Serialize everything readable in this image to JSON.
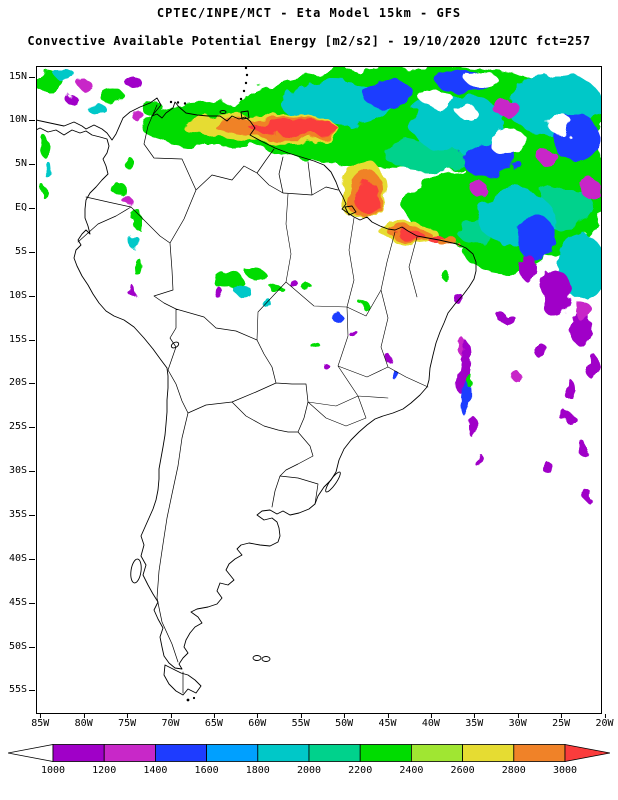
{
  "header": {
    "title_line1": "CPTEC/INPE/MCT -  Eta Model 15km - GFS",
    "title_line2": "Convective Available Potential Energy [m2/s2] - 19/10/2020 12UTC fct=257"
  },
  "axes": {
    "lat_labels": [
      "15N",
      "10N",
      "5N",
      "EQ",
      "5S",
      "10S",
      "15S",
      "20S",
      "25S",
      "30S",
      "35S",
      "40S",
      "45S",
      "50S",
      "55S"
    ],
    "lon_labels": [
      "85W",
      "80W",
      "75W",
      "70W",
      "65W",
      "60W",
      "55W",
      "50W",
      "45W",
      "40W",
      "35W",
      "30W",
      "25W",
      "20W"
    ]
  },
  "colorbar": {
    "labels": [
      "1000",
      "1200",
      "1400",
      "1600",
      "1800",
      "2000",
      "2200",
      "2400",
      "2600",
      "2800",
      "3000"
    ],
    "colors": [
      "#FFFFFF",
      "#A000C8",
      "#C828C8",
      "#1E3CFF",
      "#00A0FF",
      "#00C8C8",
      "#00D28C",
      "#00DC00",
      "#A0E632",
      "#E6DC32",
      "#F08228",
      "#FA3C3C"
    ]
  },
  "map": {
    "field_name": "CAPE",
    "line_color": "#000000",
    "blobs": [
      [
        7,
        180,
        60,
        75,
        22,
        0
      ],
      [
        7,
        380,
        52,
        190,
        52,
        0
      ],
      [
        7,
        498,
        118,
        72,
        75,
        0
      ],
      [
        7,
        432,
        142,
        62,
        38,
        0
      ],
      [
        7,
        470,
        182,
        45,
        24,
        0
      ],
      [
        6,
        390,
        88,
        42,
        18,
        0
      ],
      [
        6,
        528,
        142,
        30,
        20,
        0
      ],
      [
        6,
        445,
        165,
        25,
        12,
        0
      ],
      [
        5,
        300,
        38,
        55,
        22,
        0
      ],
      [
        5,
        422,
        58,
        48,
        28,
        0
      ],
      [
        5,
        518,
        38,
        48,
        32,
        0
      ],
      [
        5,
        480,
        152,
        38,
        28,
        0
      ],
      [
        5,
        545,
        200,
        24,
        32,
        0
      ],
      [
        3,
        352,
        28,
        26,
        14,
        0
      ],
      [
        3,
        452,
        92,
        28,
        18,
        0
      ],
      [
        3,
        540,
        72,
        24,
        24,
        0
      ],
      [
        3,
        500,
        172,
        18,
        24,
        0
      ],
      [
        3,
        428,
        16,
        28,
        11,
        0
      ],
      [
        0,
        402,
        34,
        16,
        9,
        0
      ],
      [
        0,
        472,
        76,
        20,
        12,
        0
      ],
      [
        0,
        524,
        58,
        13,
        9,
        0
      ],
      [
        0,
        446,
        14,
        16,
        8,
        0
      ],
      [
        5,
        430,
        46,
        22,
        15,
        0
      ],
      [
        0,
        430,
        45,
        10,
        7,
        0
      ],
      [
        2,
        470,
        42,
        12,
        10,
        0
      ],
      [
        2,
        512,
        92,
        10,
        8,
        0
      ],
      [
        2,
        554,
        122,
        9,
        11,
        0
      ],
      [
        2,
        442,
        122,
        8,
        8,
        0
      ],
      [
        1,
        520,
        228,
        16,
        24,
        0
      ],
      [
        1,
        545,
        262,
        12,
        17,
        0
      ],
      [
        1,
        492,
        202,
        9,
        13,
        0
      ],
      [
        1,
        556,
        300,
        8,
        12,
        0
      ],
      [
        1,
        532,
        322,
        6,
        10,
        0
      ],
      [
        2,
        548,
        246,
        8,
        10,
        0
      ],
      [
        9,
        225,
        62,
        80,
        14,
        2
      ],
      [
        10,
        240,
        62,
        62,
        10,
        2
      ],
      [
        11,
        258,
        62,
        46,
        6,
        2
      ],
      [
        9,
        326,
        124,
        22,
        30,
        15
      ],
      [
        10,
        329,
        128,
        16,
        24,
        15
      ],
      [
        11,
        331,
        131,
        10,
        16,
        15
      ],
      [
        9,
        372,
        166,
        30,
        11,
        5
      ],
      [
        10,
        373,
        167,
        22,
        8,
        5
      ],
      [
        11,
        374,
        168,
        14,
        5,
        5
      ],
      [
        11,
        400,
        173,
        8,
        4,
        0
      ],
      [
        10,
        412,
        176,
        10,
        5,
        0
      ],
      [
        7,
        12,
        16,
        16,
        9,
        0
      ],
      [
        5,
        30,
        10,
        10,
        6,
        0
      ],
      [
        2,
        50,
        20,
        7,
        5,
        0
      ],
      [
        1,
        95,
        14,
        8,
        6,
        0
      ],
      [
        7,
        76,
        30,
        12,
        8,
        0
      ],
      [
        5,
        62,
        44,
        9,
        6,
        0
      ],
      [
        7,
        116,
        42,
        11,
        7,
        0
      ],
      [
        2,
        100,
        48,
        6,
        5,
        0
      ],
      [
        1,
        36,
        34,
        6,
        5,
        0
      ],
      [
        7,
        10,
        82,
        6,
        10,
        0
      ],
      [
        5,
        14,
        106,
        4,
        8,
        0
      ],
      [
        7,
        8,
        126,
        3,
        6,
        0
      ],
      [
        7,
        82,
        122,
        6,
        8,
        0
      ],
      [
        2,
        90,
        133,
        4,
        5,
        0
      ],
      [
        7,
        96,
        100,
        5,
        6,
        0
      ],
      [
        7,
        100,
        152,
        5,
        10,
        0
      ],
      [
        5,
        98,
        176,
        4,
        8,
        0
      ],
      [
        7,
        103,
        202,
        4,
        9,
        0
      ],
      [
        1,
        97,
        226,
        3,
        6,
        0
      ],
      [
        7,
        192,
        214,
        15,
        10,
        0
      ],
      [
        5,
        206,
        224,
        8,
        6,
        0
      ],
      [
        1,
        184,
        228,
        5,
        5,
        0
      ],
      [
        7,
        222,
        210,
        9,
        6,
        0
      ],
      [
        7,
        242,
        224,
        6,
        5,
        0
      ],
      [
        1,
        256,
        216,
        4,
        4,
        0
      ],
      [
        7,
        270,
        220,
        5,
        4,
        0
      ],
      [
        5,
        232,
        238,
        5,
        4,
        0
      ],
      [
        3,
        301,
        251,
        4,
        6,
        0
      ],
      [
        1,
        316,
        266,
        3,
        5,
        0
      ],
      [
        7,
        331,
        241,
        4,
        4,
        0
      ],
      [
        1,
        351,
        291,
        3,
        4,
        0
      ],
      [
        3,
        361,
        311,
        3,
        5,
        0
      ],
      [
        7,
        281,
        281,
        4,
        4,
        0
      ],
      [
        1,
        291,
        301,
        3,
        3,
        0
      ],
      [
        1,
        421,
        231,
        4,
        6,
        0
      ],
      [
        7,
        411,
        211,
        4,
        5,
        0
      ],
      [
        2,
        427,
        282,
        5,
        9,
        0
      ],
      [
        1,
        428,
        302,
        6,
        26,
        8
      ],
      [
        3,
        430,
        332,
        5,
        18,
        4
      ],
      [
        7,
        433,
        314,
        3,
        7,
        0
      ],
      [
        1,
        438,
        362,
        4,
        11,
        0
      ],
      [
        1,
        441,
        392,
        3,
        8,
        0
      ],
      [
        1,
        470,
        252,
        8,
        6,
        0
      ],
      [
        1,
        502,
        282,
        6,
        8,
        0
      ],
      [
        2,
        482,
        312,
        5,
        5,
        0
      ],
      [
        1,
        532,
        352,
        7,
        5,
        0
      ],
      [
        1,
        546,
        382,
        5,
        7,
        0
      ],
      [
        1,
        512,
        402,
        6,
        5,
        0
      ],
      [
        1,
        552,
        430,
        4,
        6,
        0
      ]
    ]
  }
}
